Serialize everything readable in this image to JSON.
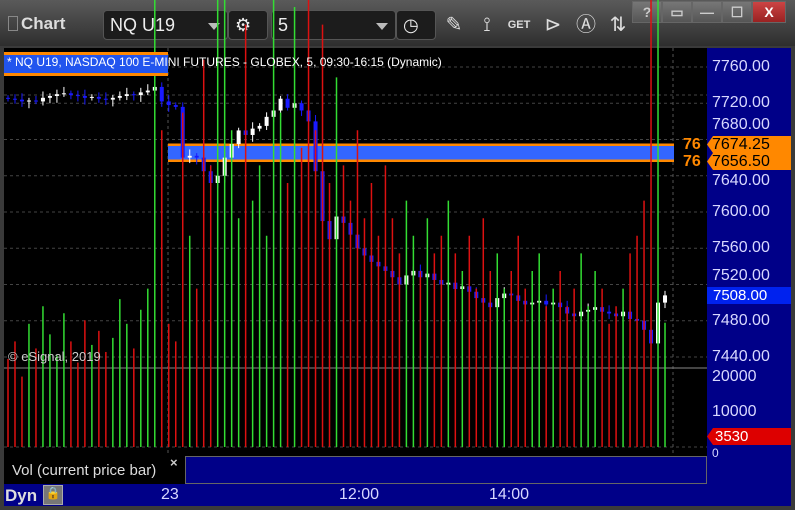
{
  "window": {
    "title": "Chart",
    "buttons": [
      "?",
      "▭",
      "—",
      "☐",
      "X"
    ]
  },
  "toolbar": {
    "symbol": "NQ U19",
    "interval": "5",
    "icons": [
      "gear-icon",
      "clock-icon",
      "pencil-icon",
      "study-icon",
      "get-icon",
      "play-icon",
      "a-icon",
      "update-icon"
    ]
  },
  "chart": {
    "legend": "* NQ U19, NASDAQ 100 E-MINI FUTURES - GLOBEX, 5, 09:30-16:15 (Dynamic)",
    "copyright": "© eSignal, 2019",
    "price_labels": [
      "7760.00",
      "7720.00",
      "7680.00",
      "7640.00",
      "7600.00",
      "7560.00",
      "7520.00",
      "7480.00",
      "7440.00"
    ],
    "level_high": {
      "tag": "76",
      "price": "7674.25"
    },
    "level_low": {
      "tag": "76",
      "price": "7656.50"
    },
    "last_price": "7508.00",
    "vol_labels": [
      "20000",
      "10000",
      "0"
    ],
    "vol_last": "3530",
    "vol_title": "Vol (current price bar)",
    "close_icon": "×",
    "time_labels": [
      "23",
      "12:00",
      "14:00"
    ],
    "mode": "Dyn",
    "colors": {
      "up": "#ffffff",
      "down": "#1a1aff",
      "vol_up": "#33dd33",
      "vol_down": "#dd1111",
      "level": "#ff8800",
      "band": "#3366ff"
    }
  },
  "chart_data": {
    "type": "candlestick",
    "ylim": [
      7440,
      7760
    ],
    "closes": [
      7725,
      7724,
      7722,
      7723,
      7722,
      7726,
      7728,
      7730,
      7731,
      7729,
      7728,
      7726,
      7727,
      7725,
      7724,
      7726,
      7728,
      7730,
      7729,
      7732,
      7734,
      7738,
      7722,
      7718,
      7716,
      7660,
      7662,
      7660,
      7645,
      7632,
      7640,
      7660,
      7675,
      7690,
      7685,
      7692,
      7695,
      7705,
      7712,
      7725,
      7715,
      7720,
      7712,
      7700,
      7645,
      7590,
      7570,
      7595,
      7588,
      7575,
      7560,
      7552,
      7545,
      7540,
      7535,
      7528,
      7520,
      7530,
      7535,
      7528,
      7532,
      7525,
      7520,
      7522,
      7515,
      7518,
      7512,
      7505,
      7500,
      7495,
      7505,
      7510,
      7508,
      7502,
      7498,
      7500,
      7502,
      7498,
      7500,
      7495,
      7488,
      7485,
      7490,
      7492,
      7495,
      7490,
      7488,
      7485,
      7490,
      7482,
      7480,
      7470,
      7455,
      7500,
      7508
    ],
    "volumes": [
      2500,
      3000,
      2000,
      3500,
      2800,
      4000,
      3200,
      2600,
      3800,
      3000,
      2400,
      3600,
      2900,
      3300,
      2700,
      3100,
      4200,
      3500,
      2800,
      3900,
      4500,
      13000,
      9000,
      3500,
      3000,
      9500,
      6000,
      4500,
      11000,
      8000,
      20000,
      17000,
      9000,
      6500,
      12000,
      7000,
      8000,
      6000,
      14500,
      9500,
      7500,
      12500,
      8500,
      13500,
      9000,
      12000,
      7500,
      10500,
      8000,
      7000,
      9000,
      6500,
      7500,
      6000,
      8000,
      6500,
      5500,
      7000,
      6000,
      5000,
      6500,
      5500,
      6000,
      7000,
      5500,
      5000,
      6000,
      4500,
      6500,
      5000,
      5500,
      4500,
      5000,
      6000,
      4500,
      5000,
      5500,
      4000,
      4500,
      5000,
      4000,
      4500,
      5500,
      4000,
      5000,
      4500,
      3500,
      4000,
      4500,
      5500,
      6000,
      7000,
      13000,
      15000,
      3530
    ]
  }
}
